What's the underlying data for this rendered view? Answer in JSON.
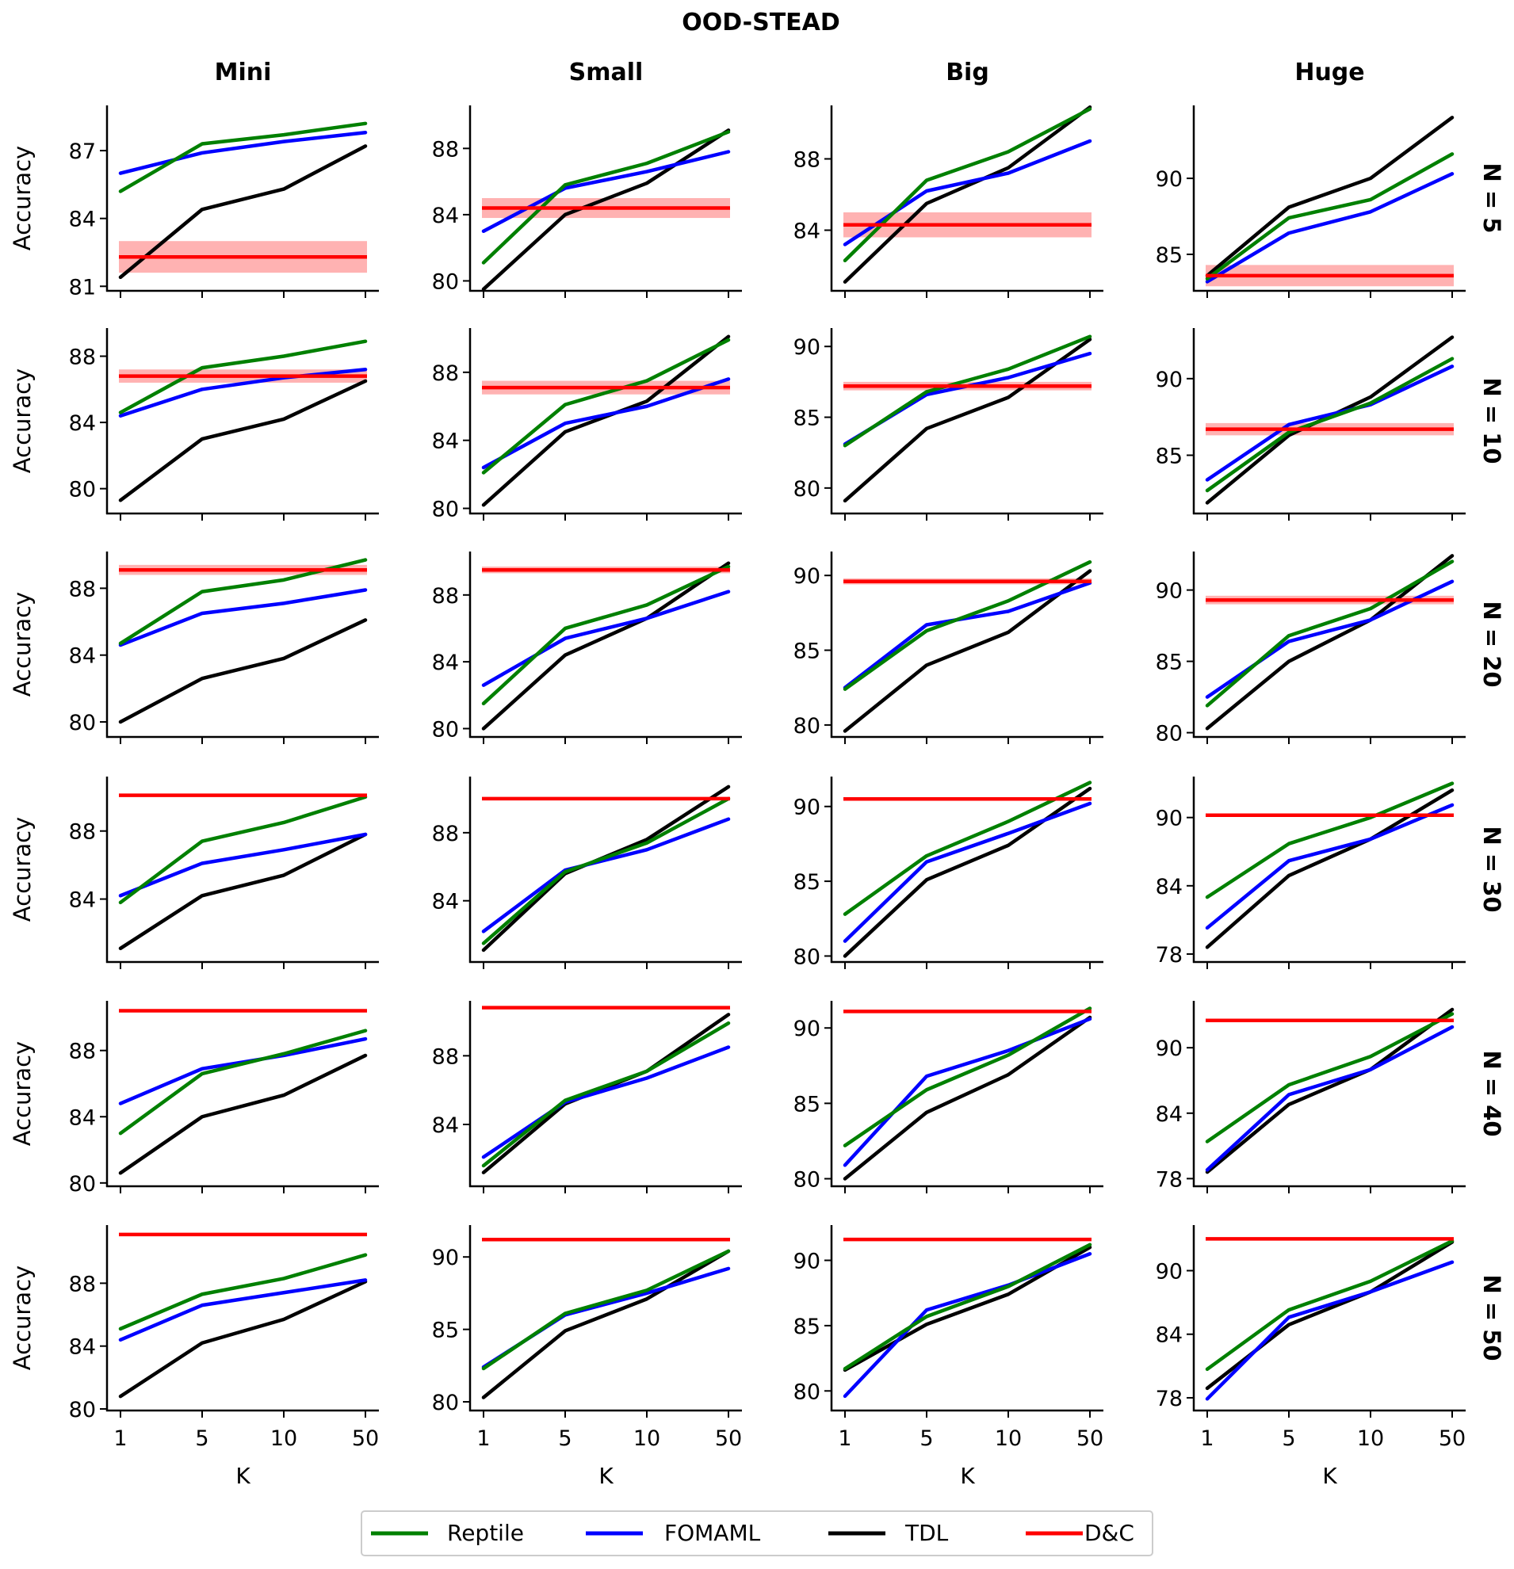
{
  "chart_data": {
    "type": "line",
    "title": "OOD-STEAD",
    "columns": [
      "Mini",
      "Small",
      "Big",
      "Huge"
    ],
    "rows": [
      "N = 5",
      "N = 10",
      "N = 20",
      "N = 30",
      "N = 40",
      "N = 50"
    ],
    "x": [
      "1",
      "5",
      "10",
      "50"
    ],
    "xlabel": "K",
    "ylabel": "Accuracy",
    "legend": [
      "Reptile",
      "FOMAML",
      "TDL",
      "D&C"
    ],
    "colors": {
      "Reptile": "#008000",
      "FOMAML": "#0000ff",
      "TDL": "#000000",
      "D&C": "#ff0000"
    },
    "panels": [
      [
        {
          "ylim": [
            80.8,
            89.0
          ],
          "yticks": [
            81,
            84,
            87
          ],
          "series": {
            "Reptile": [
              85.2,
              87.3,
              87.7,
              88.2
            ],
            "FOMAML": [
              86.0,
              86.9,
              87.4,
              87.8
            ],
            "TDL": [
              81.4,
              84.4,
              85.3,
              87.2
            ]
          },
          "dc": 82.3,
          "dc_band": 0.7
        },
        {
          "ylim": [
            79.4,
            90.6
          ],
          "yticks": [
            80,
            84,
            88
          ],
          "series": {
            "Reptile": [
              81.1,
              85.8,
              87.1,
              89.0
            ],
            "FOMAML": [
              83.0,
              85.6,
              86.6,
              87.8
            ],
            "TDL": [
              79.5,
              84.0,
              85.9,
              89.1
            ]
          },
          "dc": 84.4,
          "dc_band": 0.6
        },
        {
          "ylim": [
            80.6,
            91.0
          ],
          "yticks": [
            84,
            88
          ],
          "series": {
            "Reptile": [
              82.3,
              86.8,
              88.4,
              90.8
            ],
            "FOMAML": [
              83.2,
              86.2,
              87.2,
              89.0
            ],
            "TDL": [
              81.1,
              85.5,
              87.5,
              90.9
            ]
          },
          "dc": 84.3,
          "dc_band": 0.7
        },
        {
          "ylim": [
            82.6,
            94.8
          ],
          "yticks": [
            85,
            90
          ],
          "series": {
            "Reptile": [
              83.4,
              87.4,
              88.6,
              91.6
            ],
            "FOMAML": [
              83.2,
              86.4,
              87.8,
              90.3
            ],
            "TDL": [
              83.6,
              88.1,
              90.0,
              94.0
            ]
          },
          "dc": 83.6,
          "dc_band": 0.7
        }
      ],
      [
        {
          "ylim": [
            78.5,
            89.7
          ],
          "yticks": [
            80,
            84,
            88
          ],
          "series": {
            "Reptile": [
              84.6,
              87.3,
              88.0,
              88.9
            ],
            "FOMAML": [
              84.4,
              86.0,
              86.7,
              87.2
            ],
            "TDL": [
              79.3,
              83.0,
              84.2,
              86.5
            ]
          },
          "dc": 86.8,
          "dc_band": 0.4
        },
        {
          "ylim": [
            79.7,
            90.6
          ],
          "yticks": [
            80,
            84,
            88
          ],
          "series": {
            "Reptile": [
              82.1,
              86.1,
              87.5,
              89.9
            ],
            "FOMAML": [
              82.4,
              85.0,
              86.0,
              87.6
            ],
            "TDL": [
              80.2,
              84.5,
              86.3,
              90.1
            ]
          },
          "dc": 87.1,
          "dc_band": 0.4
        },
        {
          "ylim": [
            78.2,
            91.3
          ],
          "yticks": [
            80,
            85,
            90
          ],
          "series": {
            "Reptile": [
              83.0,
              86.8,
              88.4,
              90.7
            ],
            "FOMAML": [
              83.1,
              86.6,
              87.8,
              89.5
            ],
            "TDL": [
              79.1,
              84.2,
              86.4,
              90.5
            ]
          },
          "dc": 87.2,
          "dc_band": 0.3
        },
        {
          "ylim": [
            81.2,
            93.3
          ],
          "yticks": [
            85,
            90
          ],
          "series": {
            "Reptile": [
              82.7,
              86.5,
              88.4,
              91.3
            ],
            "FOMAML": [
              83.4,
              87.0,
              88.3,
              90.8
            ],
            "TDL": [
              81.9,
              86.3,
              88.8,
              92.7
            ]
          },
          "dc": 86.7,
          "dc_band": 0.4
        }
      ],
      [
        {
          "ylim": [
            79.1,
            90.2
          ],
          "yticks": [
            80,
            84,
            88
          ],
          "series": {
            "Reptile": [
              84.7,
              87.8,
              88.5,
              89.7
            ],
            "FOMAML": [
              84.6,
              86.5,
              87.1,
              87.9
            ],
            "TDL": [
              80.0,
              82.6,
              83.8,
              86.1
            ]
          },
          "dc": 89.1,
          "dc_band": 0.3
        },
        {
          "ylim": [
            79.5,
            90.6
          ],
          "yticks": [
            80,
            84,
            88
          ],
          "series": {
            "Reptile": [
              81.5,
              86.0,
              87.4,
              89.7
            ],
            "FOMAML": [
              82.6,
              85.4,
              86.6,
              88.2
            ],
            "TDL": [
              80.0,
              84.4,
              86.6,
              89.9
            ]
          },
          "dc": 89.5,
          "dc_band": 0.2
        },
        {
          "ylim": [
            79.2,
            91.6
          ],
          "yticks": [
            80,
            85,
            90
          ],
          "series": {
            "Reptile": [
              82.4,
              86.3,
              88.3,
              90.9
            ],
            "FOMAML": [
              82.5,
              86.7,
              87.6,
              89.5
            ],
            "TDL": [
              79.6,
              84.0,
              86.2,
              90.3
            ]
          },
          "dc": 89.6,
          "dc_band": 0.2
        },
        {
          "ylim": [
            79.7,
            92.7
          ],
          "yticks": [
            80,
            85,
            90
          ],
          "series": {
            "Reptile": [
              81.9,
              86.8,
              88.7,
              92.0
            ],
            "FOMAML": [
              82.5,
              86.4,
              87.9,
              90.6
            ],
            "TDL": [
              80.3,
              85.0,
              87.9,
              92.4
            ]
          },
          "dc": 89.3,
          "dc_band": 0.3
        }
      ],
      [
        {
          "ylim": [
            80.3,
            91.2
          ],
          "yticks": [
            84,
            88
          ],
          "series": {
            "Reptile": [
              83.8,
              87.4,
              88.5,
              90.0
            ],
            "FOMAML": [
              84.2,
              86.1,
              86.9,
              87.8
            ],
            "TDL": [
              81.1,
              84.2,
              85.4,
              87.8
            ]
          },
          "dc": 90.1,
          "dc_band": 0.0
        },
        {
          "ylim": [
            80.4,
            91.3
          ],
          "yticks": [
            84,
            88
          ],
          "series": {
            "Reptile": [
              81.5,
              85.7,
              87.4,
              90.0
            ],
            "FOMAML": [
              82.2,
              85.8,
              87.0,
              88.8
            ],
            "TDL": [
              81.1,
              85.6,
              87.6,
              90.7
            ]
          },
          "dc": 90.0,
          "dc_band": 0.0
        },
        {
          "ylim": [
            79.6,
            92.0
          ],
          "yticks": [
            80,
            85,
            90
          ],
          "series": {
            "Reptile": [
              82.8,
              86.7,
              89.0,
              91.6
            ],
            "FOMAML": [
              81.0,
              86.3,
              88.2,
              90.2
            ],
            "TDL": [
              80.0,
              85.1,
              87.4,
              91.2
            ]
          },
          "dc": 90.5,
          "dc_band": 0.0
        },
        {
          "ylim": [
            77.3,
            93.6
          ],
          "yticks": [
            78,
            84,
            90
          ],
          "series": {
            "Reptile": [
              83.0,
              87.7,
              90.0,
              93.0
            ],
            "FOMAML": [
              80.3,
              86.2,
              88.1,
              91.1
            ],
            "TDL": [
              78.6,
              84.9,
              88.1,
              92.4
            ]
          },
          "dc": 90.2,
          "dc_band": 0.0
        }
      ],
      [
        {
          "ylim": [
            79.8,
            91.0
          ],
          "yticks": [
            80,
            84,
            88
          ],
          "series": {
            "Reptile": [
              83.0,
              86.6,
              87.8,
              89.2
            ],
            "FOMAML": [
              84.8,
              86.9,
              87.7,
              88.7
            ],
            "TDL": [
              80.6,
              84.0,
              85.3,
              87.7
            ]
          },
          "dc": 90.4,
          "dc_band": 0.0
        },
        {
          "ylim": [
            80.4,
            91.2
          ],
          "yticks": [
            84,
            88
          ],
          "series": {
            "Reptile": [
              81.6,
              85.4,
              87.1,
              89.9
            ],
            "FOMAML": [
              82.1,
              85.3,
              86.7,
              88.5
            ],
            "TDL": [
              81.2,
              85.2,
              87.1,
              90.4
            ]
          },
          "dc": 90.8,
          "dc_band": 0.0
        },
        {
          "ylim": [
            79.5,
            91.8
          ],
          "yticks": [
            80,
            85,
            90
          ],
          "series": {
            "Reptile": [
              82.2,
              85.9,
              88.2,
              91.3
            ],
            "FOMAML": [
              80.9,
              86.8,
              88.5,
              90.6
            ],
            "TDL": [
              80.0,
              84.4,
              86.9,
              90.7
            ]
          },
          "dc": 91.1,
          "dc_band": 0.0
        },
        {
          "ylim": [
            77.3,
            94.3
          ],
          "yticks": [
            78,
            84,
            90
          ],
          "series": {
            "Reptile": [
              81.4,
              86.6,
              89.2,
              93.1
            ],
            "FOMAML": [
              78.8,
              85.7,
              88.0,
              91.9
            ],
            "TDL": [
              78.6,
              84.8,
              88.0,
              93.5
            ]
          },
          "dc": 92.5,
          "dc_band": 0.0
        }
      ],
      [
        {
          "ylim": [
            79.9,
            91.7
          ],
          "yticks": [
            80,
            84,
            88
          ],
          "series": {
            "Reptile": [
              85.1,
              87.3,
              88.3,
              89.8
            ],
            "FOMAML": [
              84.4,
              86.6,
              87.4,
              88.2
            ],
            "TDL": [
              80.8,
              84.2,
              85.7,
              88.1
            ]
          },
          "dc": 91.1,
          "dc_band": 0.0
        },
        {
          "ylim": [
            79.4,
            92.2
          ],
          "yticks": [
            80,
            85,
            90
          ],
          "series": {
            "Reptile": [
              82.3,
              86.1,
              87.7,
              90.4
            ],
            "FOMAML": [
              82.4,
              86.0,
              87.5,
              89.2
            ],
            "TDL": [
              80.3,
              84.9,
              87.1,
              90.4
            ]
          },
          "dc": 91.2,
          "dc_band": 0.0
        },
        {
          "ylim": [
            78.5,
            92.7
          ],
          "yticks": [
            80,
            85,
            90
          ],
          "series": {
            "Reptile": [
              81.7,
              85.7,
              88.0,
              91.2
            ],
            "FOMAML": [
              79.6,
              86.2,
              88.1,
              90.5
            ],
            "TDL": [
              81.6,
              85.1,
              87.4,
              91.0
            ]
          },
          "dc": 91.6,
          "dc_band": 0.0
        },
        {
          "ylim": [
            76.8,
            94.3
          ],
          "yticks": [
            78,
            84,
            90
          ],
          "series": {
            "Reptile": [
              80.7,
              86.3,
              89.0,
              92.8
            ],
            "FOMAML": [
              77.9,
              85.6,
              88.0,
              90.8
            ],
            "TDL": [
              78.9,
              84.9,
              88.0,
              92.7
            ]
          },
          "dc": 93.0,
          "dc_band": 0.0
        }
      ]
    ]
  }
}
